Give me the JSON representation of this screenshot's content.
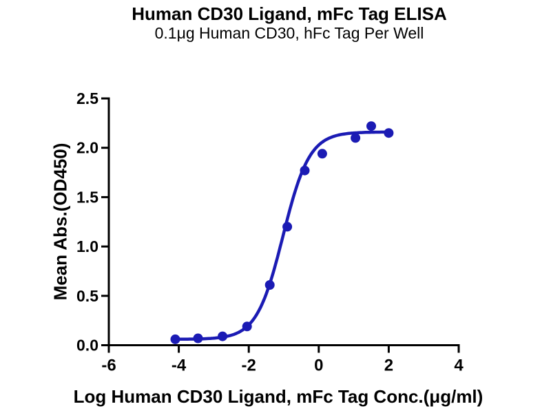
{
  "chart": {
    "title": "Human CD30 Ligand, mFc Tag ELISA",
    "subtitle": "0.1μg Human CD30, hFc Tag Per Well",
    "xlabel": "Log Human CD30 Ligand, mFc Tag Conc.(μg/ml)",
    "ylabel": "Mean Abs.(OD450)"
  },
  "chart_data": {
    "type": "scatter",
    "title": "Human CD30 Ligand, mFc Tag ELISA",
    "subtitle": "0.1μg Human CD30, hFc Tag Per Well",
    "xlabel": "Log Human CD30 Ligand, mFc Tag Conc.(μg/ml)",
    "ylabel": "Mean Abs.(OD450)",
    "x": [
      -4.1,
      -3.45,
      -2.75,
      -2.05,
      -1.4,
      -0.9,
      -0.4,
      0.1,
      1.05,
      1.5,
      2.0
    ],
    "y": [
      0.06,
      0.07,
      0.09,
      0.19,
      0.61,
      1.2,
      1.77,
      1.94,
      2.1,
      2.22,
      2.15
    ],
    "xlim": [
      -6,
      4
    ],
    "ylim": [
      0,
      2.5
    ],
    "xticks": [
      -6,
      -4,
      -2,
      0,
      2,
      4
    ],
    "xtick_labels": [
      "-6",
      "-4",
      "-2",
      "0",
      "2",
      "4"
    ],
    "yticks": [
      0,
      0.5,
      1.0,
      1.5,
      2.0,
      2.5
    ],
    "ytick_labels": [
      "0.0",
      "0.5",
      "1.0",
      "1.5",
      "2.0",
      "2.5"
    ],
    "grid": false,
    "legend": null,
    "marker_color": "#1b1bb4",
    "line_color": "#1b1bb4",
    "axis_color": "#000000",
    "fit_curve": {
      "model": "4PL",
      "bottom": 0.06,
      "top": 2.16,
      "log_ec50": -1.02,
      "hill": 1.15,
      "x_start": -4.1,
      "x_end": 2.0
    }
  }
}
